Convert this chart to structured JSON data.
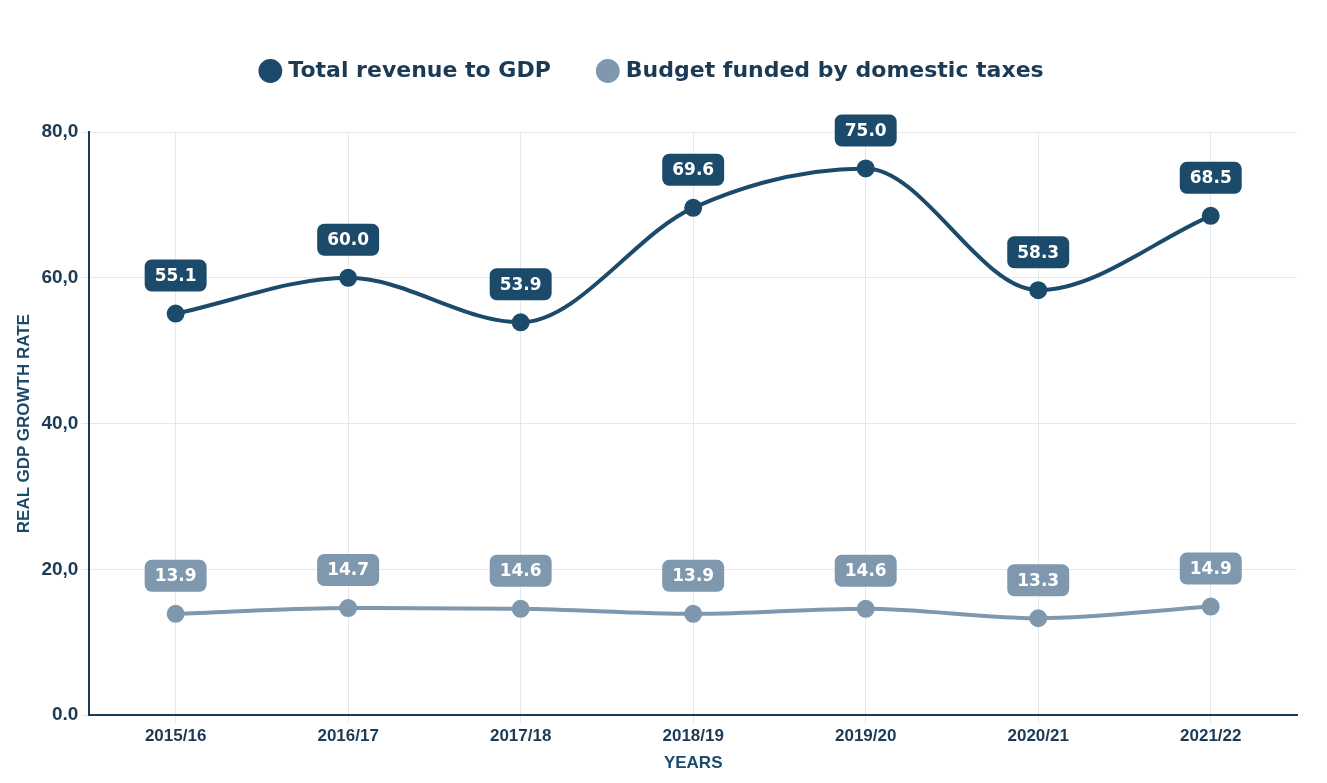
{
  "chart_data": {
    "type": "line",
    "xlabel": "YEARS",
    "ylabel": "REAL GDP GROWTH RATE",
    "categories": [
      "2015/16",
      "2016/17",
      "2017/18",
      "2018/19",
      "2019/20",
      "2020/21",
      "2021/22"
    ],
    "series": [
      {
        "name": "Total revenue to GDP",
        "color": "#1b4a6b",
        "values": [
          55.1,
          60.0,
          53.9,
          69.6,
          75.0,
          58.3,
          68.5
        ],
        "value_labels": [
          "55.1",
          "60.0",
          "53.9",
          "69.6",
          "75.0",
          "58.3",
          "68.5"
        ]
      },
      {
        "name": "Budget funded by domestic taxes",
        "color": "#7f98ad",
        "values": [
          13.9,
          14.7,
          14.6,
          13.9,
          14.6,
          13.3,
          14.9
        ],
        "value_labels": [
          "13.9",
          "14.7",
          "14.6",
          "13.9",
          "14.6",
          "13.3",
          "14.9"
        ]
      }
    ],
    "ylim": [
      0,
      80
    ],
    "yticks": [
      {
        "value": 0,
        "label": "0.0"
      },
      {
        "value": 20,
        "label": "20,0"
      },
      {
        "value": 40,
        "label": "40,0"
      },
      {
        "value": 60,
        "label": "60,0"
      },
      {
        "value": 80,
        "label": "80,0"
      }
    ],
    "grid": true,
    "legend": "top",
    "marker": "circle",
    "line_style": "solid"
  }
}
